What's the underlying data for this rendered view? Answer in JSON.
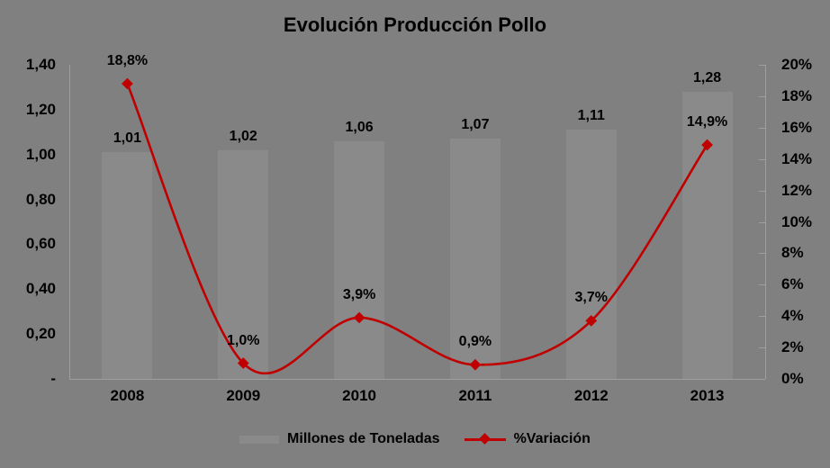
{
  "title": "Evolución Producción Pollo",
  "legend": {
    "bars_label": "Millones de Toneladas",
    "line_label": "%Variación"
  },
  "colors": {
    "background": "#808080",
    "bar": "#8a8a8a",
    "axis": "#9f9f9f",
    "line": "#c00000",
    "text": "#000000"
  },
  "chart_data": {
    "type": "bar+line combo",
    "title": "Evolución Producción Pollo",
    "categories": [
      "2008",
      "2009",
      "2010",
      "2011",
      "2012",
      "2013"
    ],
    "series": [
      {
        "name": "Millones de Toneladas",
        "type": "bar",
        "axis": "left",
        "values": [
          1.01,
          1.02,
          1.06,
          1.07,
          1.11,
          1.28
        ],
        "labels": [
          "1,01",
          "1,02",
          "1,06",
          "1,07",
          "1,11",
          "1,28"
        ]
      },
      {
        "name": "%Variación",
        "type": "line",
        "axis": "right",
        "smooth": true,
        "marker": "diamond",
        "values": [
          18.8,
          1.0,
          3.9,
          0.9,
          3.7,
          14.9
        ],
        "labels": [
          "18,8%",
          "1,0%",
          "3,9%",
          "0,9%",
          "3,7%",
          "14,9%"
        ]
      }
    ],
    "left_axis": {
      "min": 0,
      "max": 1.4,
      "step": 0.2,
      "tick_labels": [
        "1,40",
        "1,20",
        "1,00",
        "0,80",
        "0,60",
        "0,40",
        "0,20",
        "-"
      ]
    },
    "right_axis": {
      "min": 0,
      "max": 20,
      "step": 2,
      "tick_labels": [
        "20%",
        "18%",
        "16%",
        "14%",
        "12%",
        "10%",
        "8%",
        "6%",
        "4%",
        "2%",
        "0%"
      ]
    },
    "grid": false,
    "legend_position": "bottom"
  }
}
